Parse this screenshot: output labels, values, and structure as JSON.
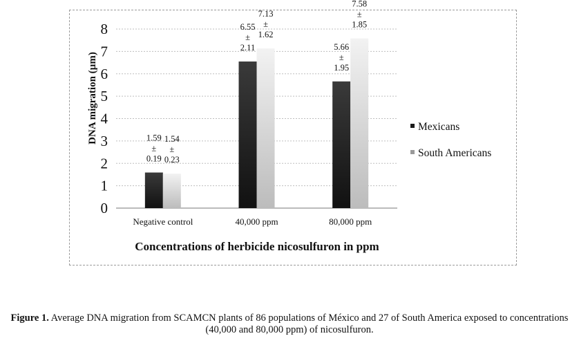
{
  "chart_data": {
    "type": "bar",
    "categories": [
      "Negative control",
      "40,000 ppm",
      "80,000 ppm"
    ],
    "series": [
      {
        "name": "Mexicans",
        "values": [
          1.59,
          6.55,
          5.66
        ],
        "errors": [
          0.19,
          2.11,
          1.95
        ],
        "color": "#1a1a1a"
      },
      {
        "name": "South Americans",
        "values": [
          1.54,
          7.13,
          7.58
        ],
        "errors": [
          0.23,
          1.62,
          1.85
        ],
        "color": "#d0d0d0"
      }
    ],
    "value_labels": [
      [
        {
          "mean": "1.59",
          "pm": "±",
          "sd": "0.19"
        },
        {
          "mean": "1.54",
          "pm": "±",
          "sd": "0.23"
        }
      ],
      [
        {
          "mean": "6.55",
          "pm": "±",
          "sd": "2.11"
        },
        {
          "mean": "7.13",
          "pm": "±",
          "sd": "1.62"
        }
      ],
      [
        {
          "mean": "5.66",
          "pm": "±",
          "sd": "1.95"
        },
        {
          "mean": "7.58",
          "pm": "±",
          "sd": "1.85"
        }
      ]
    ],
    "xlabel": "Concentrations  of  herbicide nicosulfuron in ppm",
    "ylabel": "DNA migration (µm)",
    "ylim": [
      0,
      8
    ],
    "yticks": [
      "0",
      "1",
      "2",
      "3",
      "4",
      "5",
      "6",
      "7",
      "8"
    ],
    "grid": true,
    "legend_position": "right"
  },
  "caption": {
    "label": "Figure 1.",
    "text": " Average DNA migration from SCAMCN plants of 86 populations of México and 27 of South America exposed to concentrations (40,000 and 80,000 ppm) of nicosulfuron."
  }
}
